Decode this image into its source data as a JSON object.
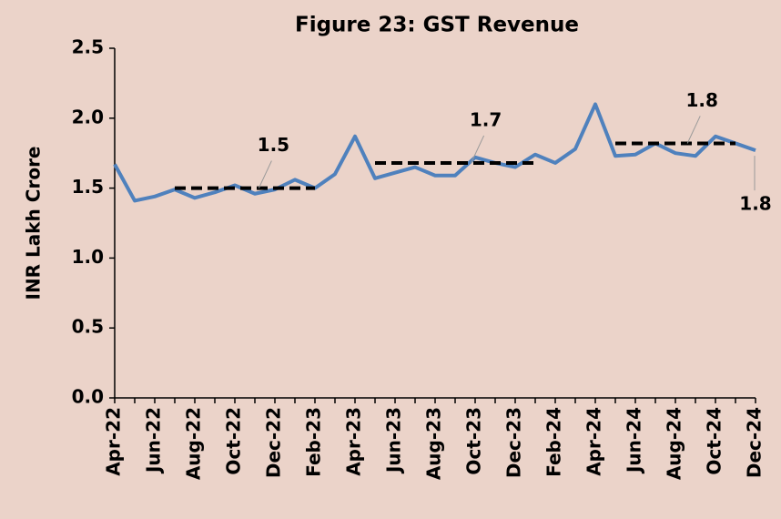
{
  "chart_data": {
    "type": "line",
    "title": "Figure 23: GST Revenue",
    "y_label": "INR Lakh Crore",
    "categories": [
      "Apr-22",
      null,
      "Jun-22",
      null,
      "Aug-22",
      null,
      "Oct-22",
      null,
      "Dec-22",
      null,
      "Feb-23",
      null,
      "Apr-23",
      null,
      "Jun-23",
      null,
      "Aug-23",
      null,
      "Oct-23",
      null,
      "Dec-23",
      null,
      "Feb-24",
      null,
      "Apr-24",
      null,
      "Jun-24",
      null,
      "Aug-24",
      null,
      "Oct-24",
      null,
      "Dec-24"
    ],
    "series": [
      {
        "color": "#4f81bd",
        "values": [
          1.67,
          1.41,
          1.44,
          1.49,
          1.43,
          1.47,
          1.52,
          1.46,
          1.49,
          1.56,
          1.5,
          1.6,
          1.87,
          1.57,
          1.61,
          1.65,
          1.59,
          1.59,
          1.72,
          1.68,
          1.65,
          1.74,
          1.68,
          1.78,
          2.1,
          1.73,
          1.74,
          1.82,
          1.75,
          1.73,
          1.87,
          1.82,
          1.77
        ],
        "end_label": "1.8"
      },
      {
        "color": "#000000",
        "dash": true,
        "label": "1.5",
        "values": [
          null,
          null,
          null,
          1.5,
          1.5,
          1.5,
          1.5,
          1.5,
          1.5,
          1.5,
          1.5,
          null,
          null,
          null,
          null,
          null,
          null,
          null,
          null,
          null,
          null,
          null,
          null,
          null,
          null,
          null,
          null,
          null,
          null,
          null,
          null,
          null,
          null
        ]
      },
      {
        "color": "#000000",
        "dash": true,
        "label": "1.7",
        "values": [
          null,
          null,
          null,
          null,
          null,
          null,
          null,
          null,
          null,
          null,
          null,
          null,
          null,
          1.68,
          1.68,
          1.68,
          1.68,
          1.68,
          1.68,
          1.68,
          1.68,
          1.68,
          null,
          null,
          null,
          null,
          null,
          null,
          null,
          null,
          null,
          null,
          null
        ]
      },
      {
        "color": "#000000",
        "dash": true,
        "label": "1.8",
        "values": [
          null,
          null,
          null,
          null,
          null,
          null,
          null,
          null,
          null,
          null,
          null,
          null,
          null,
          null,
          null,
          null,
          null,
          null,
          null,
          null,
          null,
          null,
          null,
          null,
          null,
          1.82,
          1.82,
          1.82,
          1.82,
          1.82,
          1.82,
          1.82,
          null
        ]
      }
    ],
    "ylim": [
      0,
      2.5
    ],
    "yticks": [
      {
        "value": 0,
        "label": "0.0"
      },
      {
        "value": 0.5,
        "label": "0.5"
      },
      {
        "value": 1,
        "label": "1.0"
      },
      {
        "value": 1.5,
        "label": "1.5"
      },
      {
        "value": 2,
        "label": "2.0"
      },
      {
        "value": 2.5,
        "label": "2.5"
      }
    ]
  }
}
